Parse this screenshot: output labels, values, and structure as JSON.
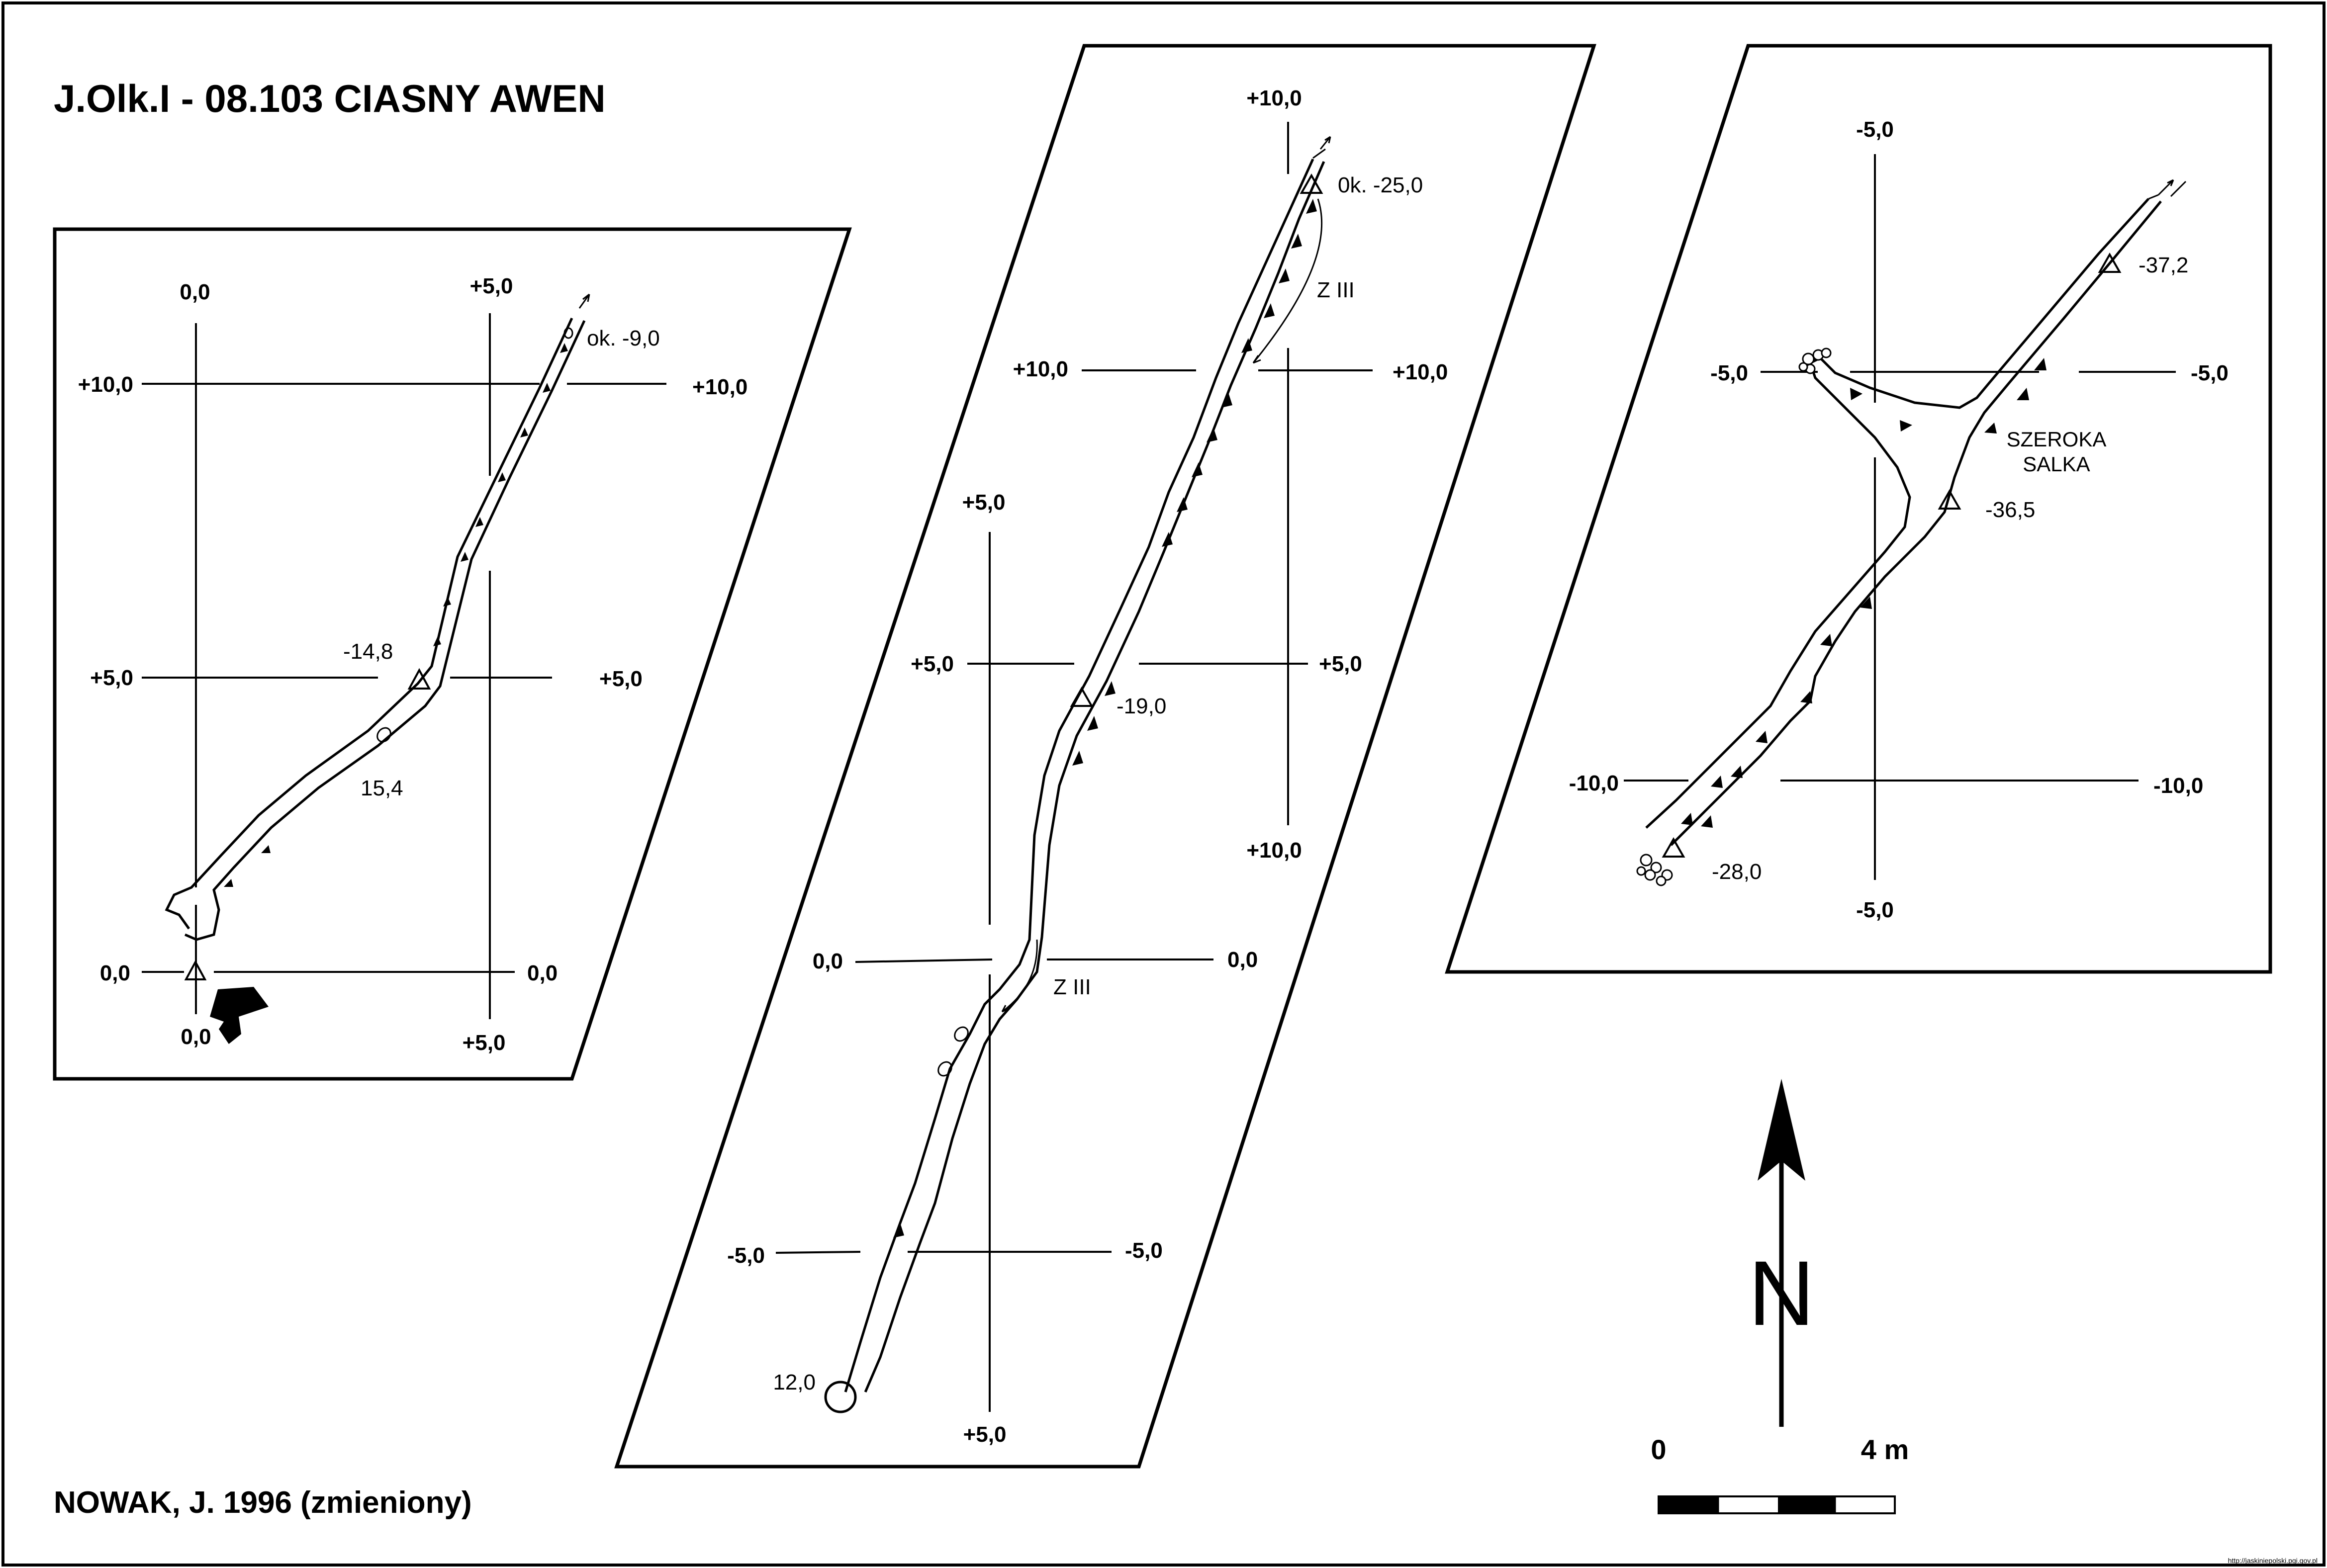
{
  "title": "J.Olk.I - 08.103  CIASNY AWEN",
  "credit": "NOWAK, J. 1996 (zmieniony)",
  "watermark": "http://jaskiniepolski.pgi.gov.pl",
  "panel1": {
    "grid": {
      "top_left": "0,0",
      "top_right": "+5,0",
      "left_upper": "+10,0",
      "right_upper": "+10,0",
      "left_mid": "+5,0",
      "right_mid": "+5,0",
      "left_low": "0,0",
      "right_low": "0,0",
      "bottom_left": "0,0",
      "bottom_right": "+5,0"
    },
    "annotations": {
      "entrance_depth": "ok.  -9,0",
      "station": "-14,8",
      "width": "15,4"
    }
  },
  "panel2": {
    "grid": {
      "top": "+10,0",
      "upper_left": "+10,0",
      "upper_right": "+10,0",
      "mid_top": "+5,0",
      "mid_left": "+5,0",
      "mid_right": "+5,0",
      "lower_top": "+10,0",
      "low_left": "0,0",
      "low_right": "0,0",
      "bottom_left": "-5,0",
      "bottom_right": "-5,0",
      "bottom": "+5,0"
    },
    "annotations": {
      "top_depth": "0k. -25,0",
      "zone1": "Z III",
      "station": "-19,0",
      "zone2": "Z III",
      "end": "12,0"
    }
  },
  "panel3": {
    "grid": {
      "top": "-5,0",
      "upper_left": "-5,0",
      "upper_right": "-5,0",
      "lower_left": "-10,0",
      "lower_right": "-10,0",
      "bottom": "-5,0"
    },
    "annotations": {
      "top_depth": "-37,2",
      "room_line1": "SZEROKA",
      "room_line2": "SALKA",
      "station": "-36,5",
      "bottom_depth": "-28,0"
    }
  },
  "north": {
    "label": "N"
  },
  "scale_bar": {
    "start": "0",
    "end": "4 m"
  }
}
